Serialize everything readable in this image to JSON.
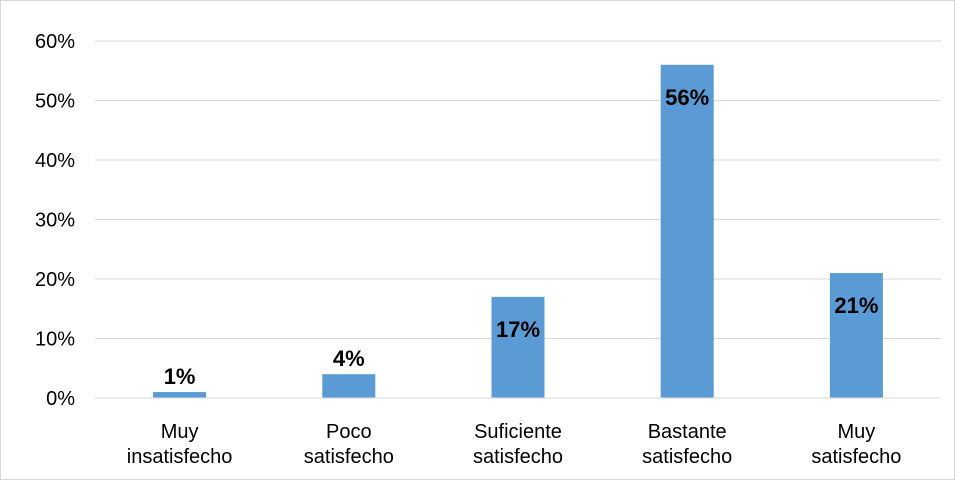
{
  "chart_data": {
    "type": "bar",
    "categories": [
      [
        "Muy",
        "insatisfecho"
      ],
      [
        "Poco",
        "satisfecho"
      ],
      [
        "Suficiente",
        "satisfecho"
      ],
      [
        "Bastante",
        "satisfecho"
      ],
      [
        "Muy",
        "satisfecho"
      ]
    ],
    "values": [
      1,
      4,
      17,
      56,
      21
    ],
    "data_labels": [
      "1%",
      "4%",
      "17%",
      "56%",
      "21%"
    ],
    "title": "",
    "xlabel": "",
    "ylabel": "",
    "ylim": [
      0,
      60
    ],
    "yticks": [
      0,
      10,
      20,
      30,
      40,
      50,
      60
    ],
    "ytick_labels": [
      "0%",
      "10%",
      "20%",
      "30%",
      "40%",
      "50%",
      "60%"
    ],
    "grid": true,
    "legend": "none",
    "bar_color": "#5b9bd5",
    "grid_color": "#d9d9d9"
  }
}
